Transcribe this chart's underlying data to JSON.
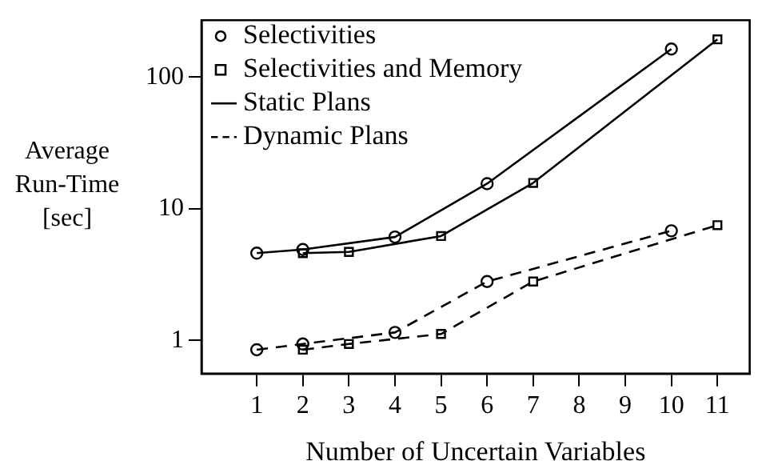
{
  "chart_data": {
    "type": "line",
    "xlabel": "Number of Uncertain Variables",
    "ylabel": "Average Run-Time [sec]",
    "log": "y",
    "grid": false,
    "legend": "top left",
    "xlim": [
      -0.2,
      11.7
    ],
    "xticks": [
      1,
      2,
      3,
      4,
      5,
      6,
      7,
      8,
      9,
      10,
      11
    ],
    "ylim": [
      0.56,
      270
    ],
    "yticks": [
      1,
      10,
      100
    ],
    "series": [
      {
        "color": "#000000",
        "marker": "circle",
        "line_style": "solid",
        "x": [
          1,
          2,
          4,
          6,
          10
        ],
        "values": [
          4.6,
          4.9,
          6.1,
          15.5,
          163
        ]
      },
      {
        "color": "#000000",
        "marker": "square",
        "line_style": "solid",
        "x": [
          2,
          3,
          5,
          7,
          11
        ],
        "values": [
          4.6,
          4.7,
          6.2,
          15.7,
          193
        ]
      },
      {
        "color": "#000000",
        "marker": "circle",
        "line_style": "dashed",
        "x": [
          1,
          2,
          4,
          6,
          10
        ],
        "values": [
          0.85,
          0.94,
          1.15,
          2.8,
          6.8
        ]
      },
      {
        "color": "#000000",
        "marker": "square",
        "line_style": "dashed",
        "x": [
          2,
          3,
          5,
          7,
          11
        ],
        "values": [
          0.85,
          0.94,
          1.12,
          2.8,
          7.5
        ]
      },
      {
        "name": "Selectivities",
        "color": "#000000",
        "marker": "circle",
        "line_style": "none"
      },
      {
        "name": "Selectivities and Memory",
        "color": "#000000",
        "marker": "square",
        "line_style": "none"
      },
      {
        "name": "Static Plans",
        "color": "#000000",
        "marker": "none",
        "line_style": "solid"
      },
      {
        "name": "Dynamic Plans",
        "color": "#000000",
        "marker": "none",
        "line_style": "dashed"
      }
    ]
  }
}
